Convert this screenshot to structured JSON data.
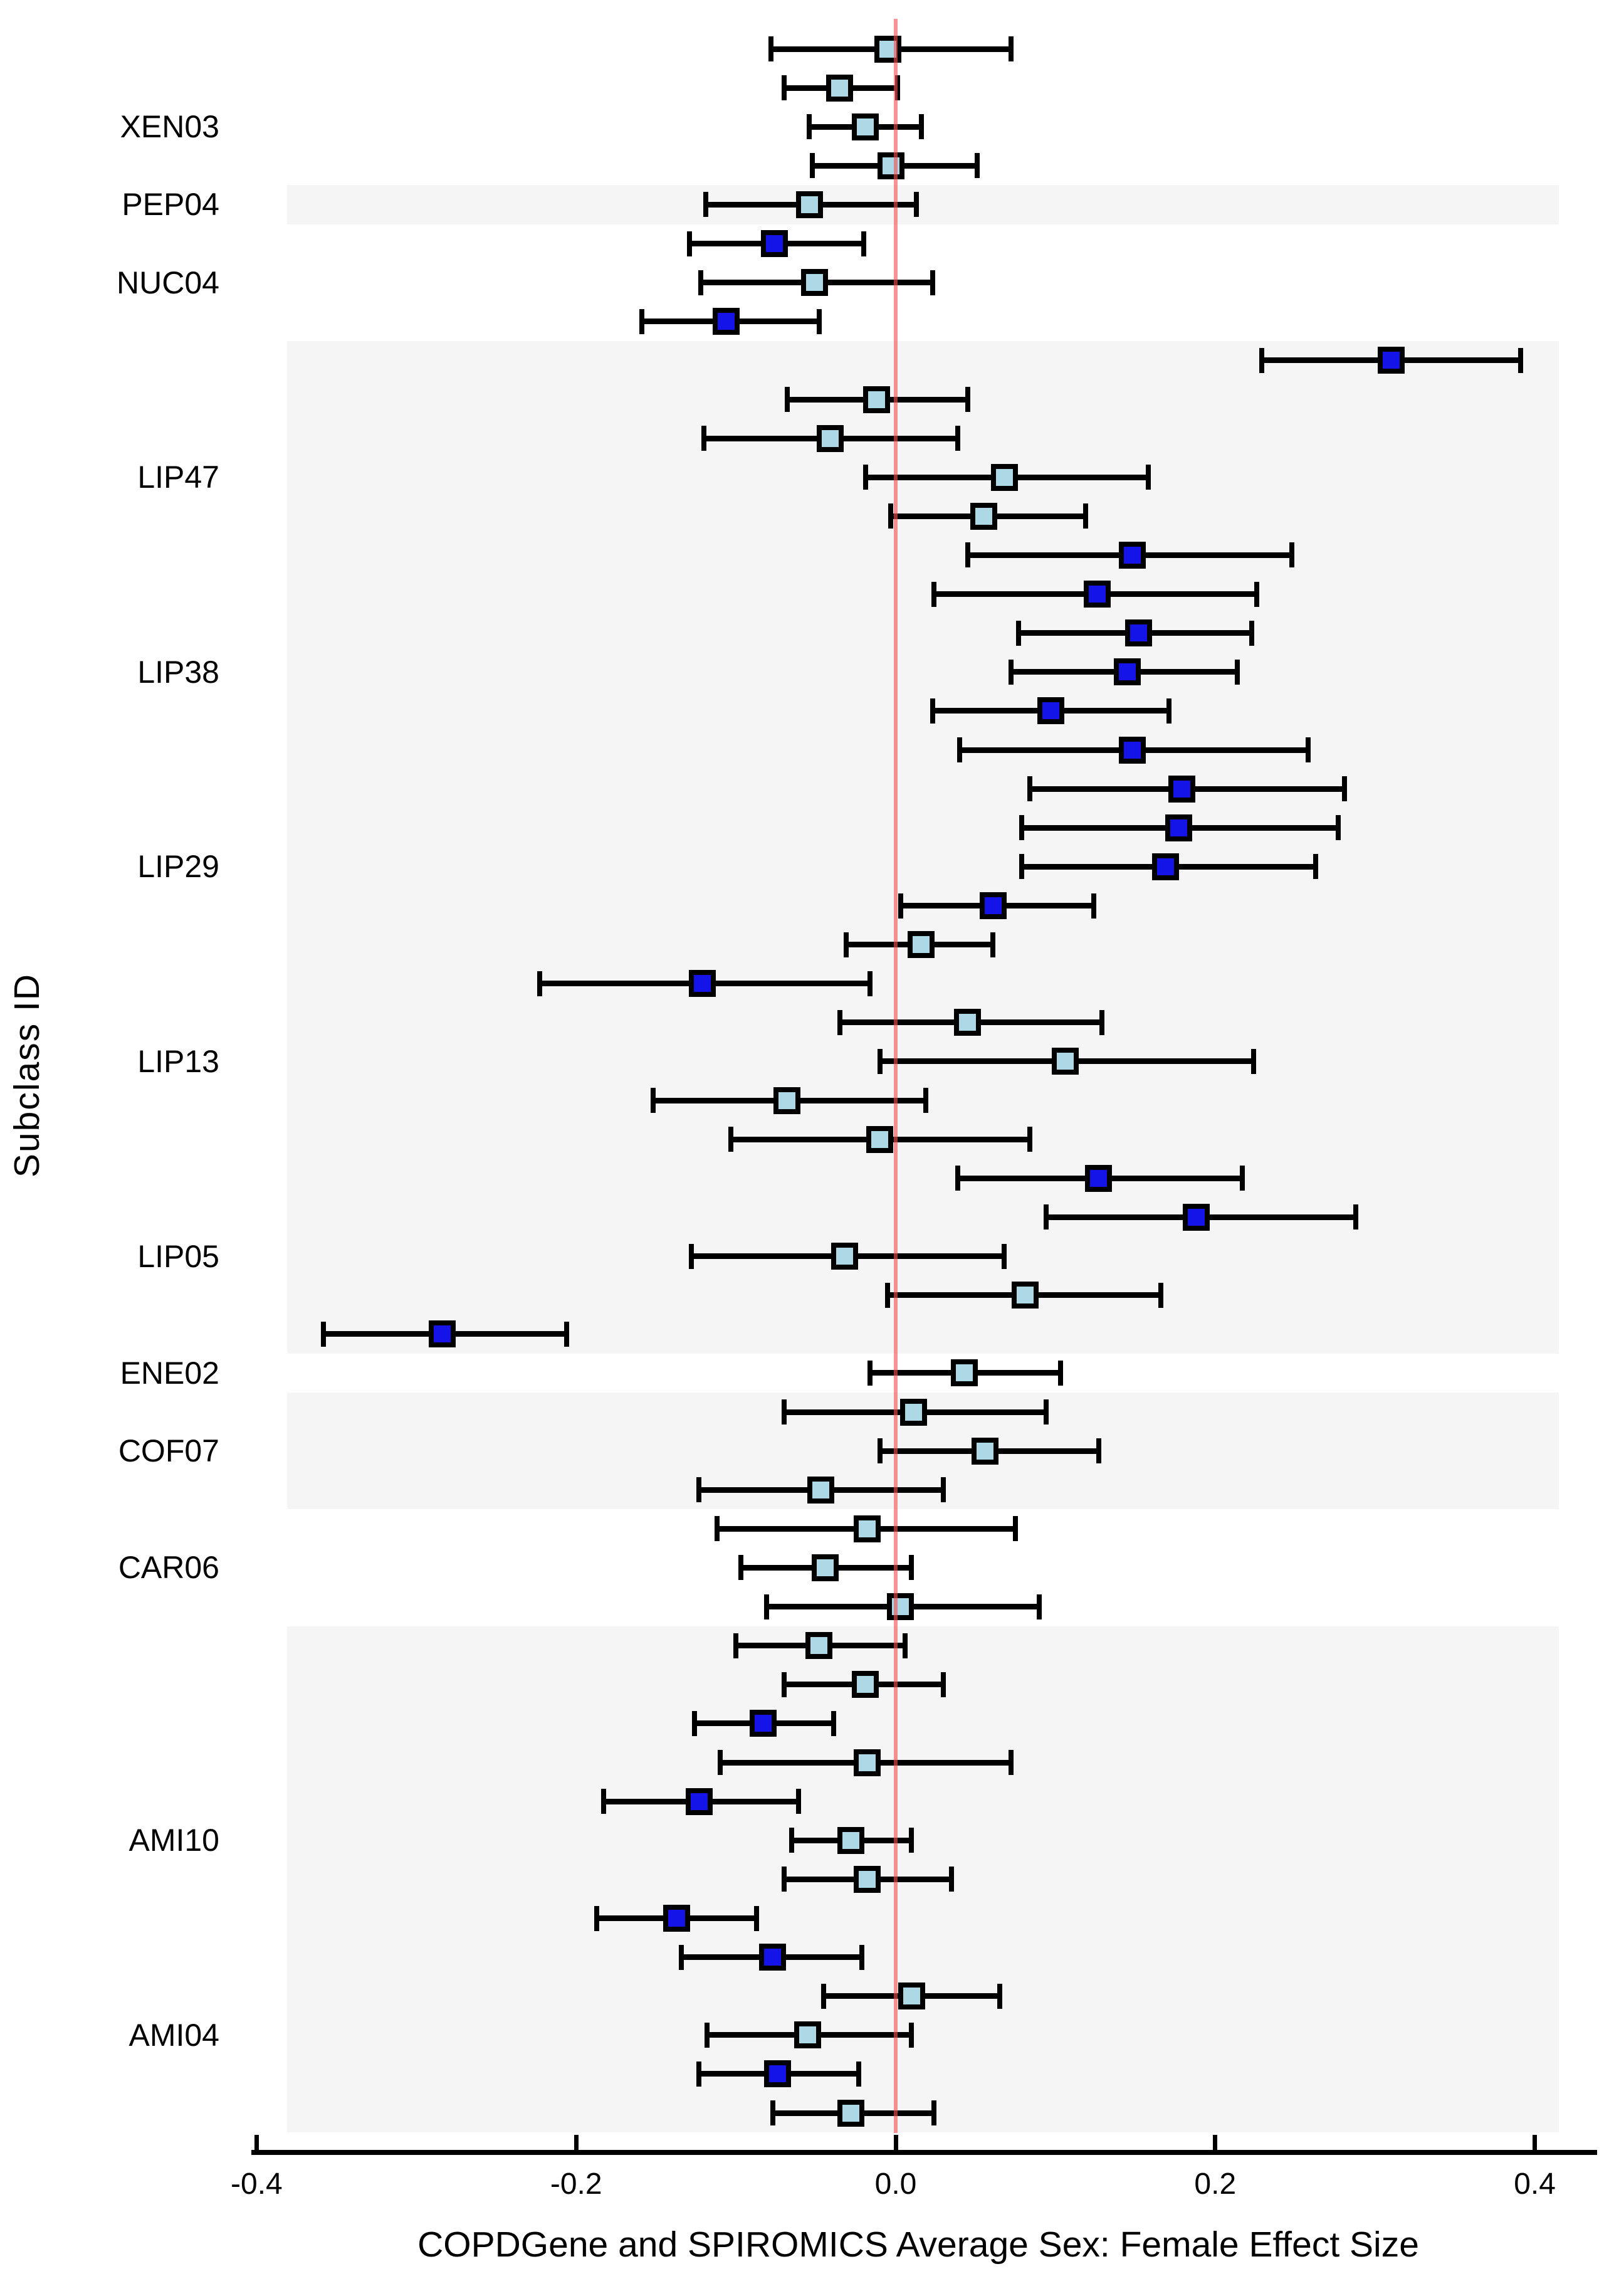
{
  "figure": {
    "x_axis_title": "COPDGene and SPIROMICS Average Sex: Female Effect Size",
    "y_axis_title": "Subclass ID",
    "x_ticks": [
      {
        "label": "-0.4",
        "value": -0.4
      },
      {
        "label": "-0.2",
        "value": -0.2
      },
      {
        "label": "0.0",
        "value": 0.0
      },
      {
        "label": "0.2",
        "value": 0.2
      },
      {
        "label": "0.4",
        "value": 0.4
      }
    ],
    "colors": {
      "marker_light": "#ADD8E6",
      "marker_dark": "#1414E8",
      "marker_stroke": "#000000",
      "errorbar": "#000000",
      "band": "#f5f5f5",
      "reference_line": "rgba(242,80,80,0.62)",
      "axis": "#000000"
    }
  },
  "chart_data": {
    "type": "scatter",
    "subtype": "forest-plot",
    "xlabel": "COPDGene and SPIROMICS Average Sex: Female Effect Size",
    "ylabel": "Subclass ID",
    "xlim": [
      -0.42,
      0.43
    ],
    "reference_line_x": 0.0,
    "grid": false,
    "legend": "none",
    "y_group_labels": [
      {
        "text": "XEN03",
        "row": 3
      },
      {
        "text": "PEP04",
        "row": 5
      },
      {
        "text": "NUC04",
        "row": 7
      },
      {
        "text": "LIP47",
        "row": 12
      },
      {
        "text": "LIP38",
        "row": 17
      },
      {
        "text": "LIP29",
        "row": 22
      },
      {
        "text": "LIP13",
        "row": 27
      },
      {
        "text": "LIP05",
        "row": 32
      },
      {
        "text": "ENE02",
        "row": 35
      },
      {
        "text": "COF07",
        "row": 37
      },
      {
        "text": "CAR06",
        "row": 40
      },
      {
        "text": "AMI10",
        "row": 47
      },
      {
        "text": "AMI04",
        "row": 52
      }
    ],
    "shaded_bands_rows": [
      {
        "start_row": 5,
        "end_row": 5
      },
      {
        "start_row": 9,
        "end_row": 34
      },
      {
        "start_row": 36,
        "end_row": 38
      },
      {
        "start_row": 42,
        "end_row": 54
      }
    ],
    "points": [
      {
        "row": 1,
        "estimate": -0.005,
        "ci_low": -0.078,
        "ci_high": 0.072,
        "color": "light"
      },
      {
        "row": 2,
        "estimate": -0.035,
        "ci_low": -0.07,
        "ci_high": 0.001,
        "color": "light"
      },
      {
        "row": 3,
        "estimate": -0.019,
        "ci_low": -0.054,
        "ci_high": 0.016,
        "color": "light"
      },
      {
        "row": 4,
        "estimate": -0.003,
        "ci_low": -0.052,
        "ci_high": 0.051,
        "color": "light"
      },
      {
        "row": 5,
        "estimate": -0.054,
        "ci_low": -0.119,
        "ci_high": 0.013,
        "color": "light"
      },
      {
        "row": 6,
        "estimate": -0.076,
        "ci_low": -0.129,
        "ci_high": -0.02,
        "color": "dark"
      },
      {
        "row": 7,
        "estimate": -0.051,
        "ci_low": -0.122,
        "ci_high": 0.023,
        "color": "light"
      },
      {
        "row": 8,
        "estimate": -0.106,
        "ci_low": -0.159,
        "ci_high": -0.048,
        "color": "dark"
      },
      {
        "row": 9,
        "estimate": 0.31,
        "ci_low": 0.229,
        "ci_high": 0.391,
        "color": "dark"
      },
      {
        "row": 10,
        "estimate": -0.012,
        "ci_low": -0.068,
        "ci_high": 0.045,
        "color": "light"
      },
      {
        "row": 11,
        "estimate": -0.041,
        "ci_low": -0.12,
        "ci_high": 0.039,
        "color": "light"
      },
      {
        "row": 12,
        "estimate": 0.068,
        "ci_low": -0.019,
        "ci_high": 0.158,
        "color": "light"
      },
      {
        "row": 13,
        "estimate": 0.055,
        "ci_low": -0.003,
        "ci_high": 0.119,
        "color": "light"
      },
      {
        "row": 14,
        "estimate": 0.148,
        "ci_low": 0.045,
        "ci_high": 0.248,
        "color": "dark"
      },
      {
        "row": 15,
        "estimate": 0.126,
        "ci_low": 0.024,
        "ci_high": 0.226,
        "color": "dark"
      },
      {
        "row": 16,
        "estimate": 0.152,
        "ci_low": 0.077,
        "ci_high": 0.223,
        "color": "dark"
      },
      {
        "row": 17,
        "estimate": 0.145,
        "ci_low": 0.072,
        "ci_high": 0.214,
        "color": "dark"
      },
      {
        "row": 18,
        "estimate": 0.097,
        "ci_low": 0.023,
        "ci_high": 0.171,
        "color": "dark"
      },
      {
        "row": 19,
        "estimate": 0.148,
        "ci_low": 0.04,
        "ci_high": 0.258,
        "color": "dark"
      },
      {
        "row": 20,
        "estimate": 0.179,
        "ci_low": 0.084,
        "ci_high": 0.281,
        "color": "dark"
      },
      {
        "row": 21,
        "estimate": 0.177,
        "ci_low": 0.079,
        "ci_high": 0.277,
        "color": "dark"
      },
      {
        "row": 22,
        "estimate": 0.169,
        "ci_low": 0.079,
        "ci_high": 0.263,
        "color": "dark"
      },
      {
        "row": 23,
        "estimate": 0.061,
        "ci_low": 0.003,
        "ci_high": 0.124,
        "color": "dark"
      },
      {
        "row": 24,
        "estimate": 0.016,
        "ci_low": -0.031,
        "ci_high": 0.061,
        "color": "light"
      },
      {
        "row": 25,
        "estimate": -0.121,
        "ci_low": -0.223,
        "ci_high": -0.016,
        "color": "dark"
      },
      {
        "row": 26,
        "estimate": 0.045,
        "ci_low": -0.035,
        "ci_high": 0.129,
        "color": "light"
      },
      {
        "row": 27,
        "estimate": 0.106,
        "ci_low": -0.01,
        "ci_high": 0.224,
        "color": "light"
      },
      {
        "row": 28,
        "estimate": -0.068,
        "ci_low": -0.152,
        "ci_high": 0.019,
        "color": "light"
      },
      {
        "row": 29,
        "estimate": -0.01,
        "ci_low": -0.103,
        "ci_high": 0.084,
        "color": "light"
      },
      {
        "row": 30,
        "estimate": 0.127,
        "ci_low": 0.039,
        "ci_high": 0.217,
        "color": "dark"
      },
      {
        "row": 31,
        "estimate": 0.188,
        "ci_low": 0.094,
        "ci_high": 0.288,
        "color": "dark"
      },
      {
        "row": 32,
        "estimate": -0.032,
        "ci_low": -0.128,
        "ci_high": 0.068,
        "color": "light"
      },
      {
        "row": 33,
        "estimate": 0.081,
        "ci_low": -0.005,
        "ci_high": 0.166,
        "color": "light"
      },
      {
        "row": 34,
        "estimate": -0.284,
        "ci_low": -0.358,
        "ci_high": -0.206,
        "color": "dark"
      },
      {
        "row": 35,
        "estimate": 0.043,
        "ci_low": -0.016,
        "ci_high": 0.103,
        "color": "light"
      },
      {
        "row": 36,
        "estimate": 0.011,
        "ci_low": -0.07,
        "ci_high": 0.094,
        "color": "light"
      },
      {
        "row": 37,
        "estimate": 0.056,
        "ci_low": -0.01,
        "ci_high": 0.127,
        "color": "light"
      },
      {
        "row": 38,
        "estimate": -0.047,
        "ci_low": -0.123,
        "ci_high": 0.03,
        "color": "light"
      },
      {
        "row": 39,
        "estimate": -0.018,
        "ci_low": -0.112,
        "ci_high": 0.075,
        "color": "light"
      },
      {
        "row": 40,
        "estimate": -0.044,
        "ci_low": -0.097,
        "ci_high": 0.01,
        "color": "light"
      },
      {
        "row": 41,
        "estimate": 0.003,
        "ci_low": -0.081,
        "ci_high": 0.09,
        "color": "light"
      },
      {
        "row": 42,
        "estimate": -0.048,
        "ci_low": -0.1,
        "ci_high": 0.006,
        "color": "light"
      },
      {
        "row": 43,
        "estimate": -0.019,
        "ci_low": -0.07,
        "ci_high": 0.03,
        "color": "light"
      },
      {
        "row": 44,
        "estimate": -0.083,
        "ci_low": -0.126,
        "ci_high": -0.039,
        "color": "dark"
      },
      {
        "row": 45,
        "estimate": -0.018,
        "ci_low": -0.11,
        "ci_high": 0.072,
        "color": "light"
      },
      {
        "row": 46,
        "estimate": -0.123,
        "ci_low": -0.183,
        "ci_high": -0.061,
        "color": "dark"
      },
      {
        "row": 47,
        "estimate": -0.028,
        "ci_low": -0.065,
        "ci_high": 0.01,
        "color": "light"
      },
      {
        "row": 48,
        "estimate": -0.018,
        "ci_low": -0.07,
        "ci_high": 0.035,
        "color": "light"
      },
      {
        "row": 49,
        "estimate": -0.137,
        "ci_low": -0.187,
        "ci_high": -0.087,
        "color": "dark"
      },
      {
        "row": 50,
        "estimate": -0.077,
        "ci_low": -0.134,
        "ci_high": -0.021,
        "color": "dark"
      },
      {
        "row": 51,
        "estimate": 0.01,
        "ci_low": -0.045,
        "ci_high": 0.065,
        "color": "light"
      },
      {
        "row": 52,
        "estimate": -0.055,
        "ci_low": -0.118,
        "ci_high": 0.01,
        "color": "light"
      },
      {
        "row": 53,
        "estimate": -0.074,
        "ci_low": -0.123,
        "ci_high": -0.023,
        "color": "dark"
      },
      {
        "row": 54,
        "estimate": -0.028,
        "ci_low": -0.077,
        "ci_high": 0.024,
        "color": "light"
      }
    ]
  }
}
